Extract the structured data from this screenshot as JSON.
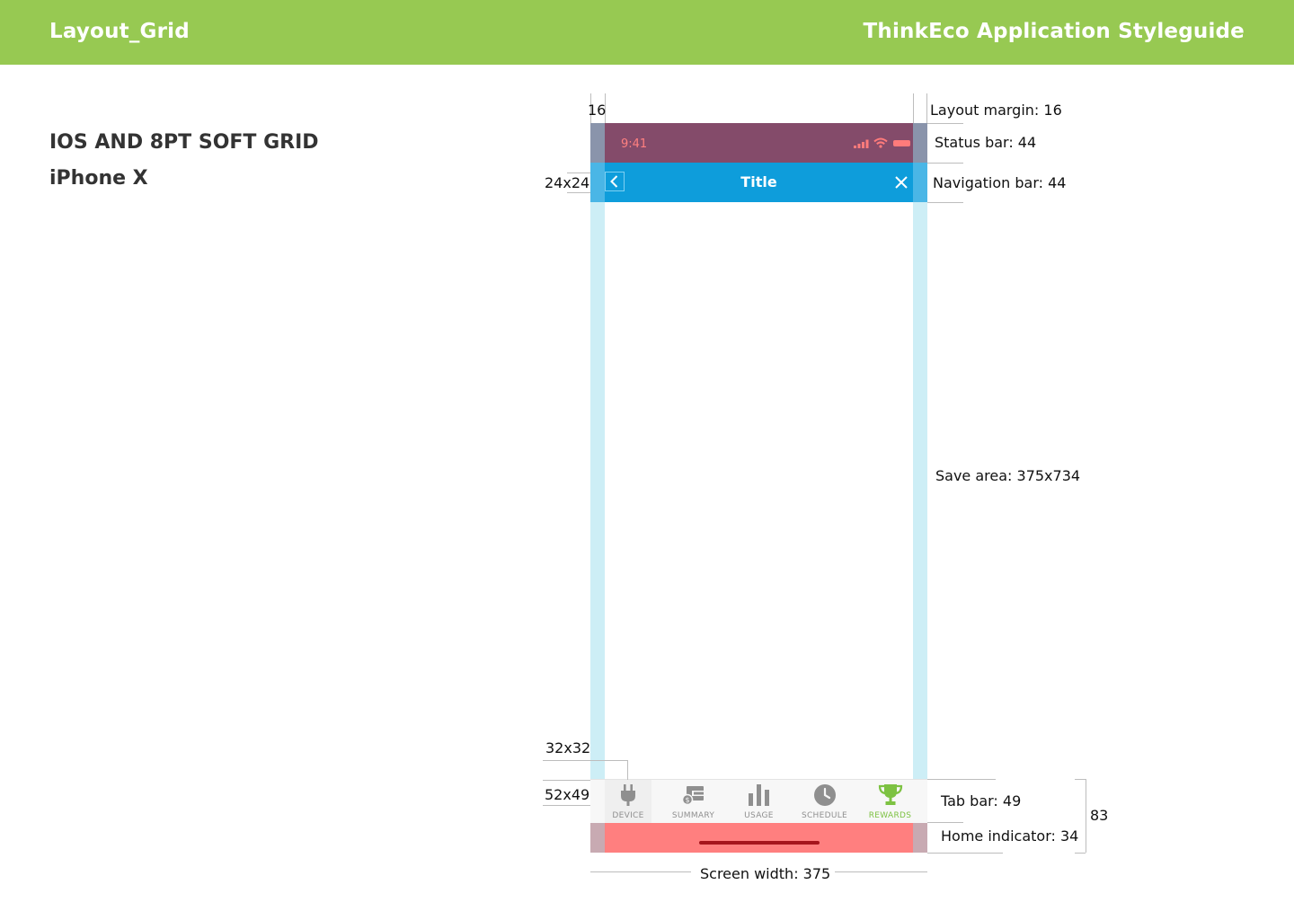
{
  "header": {
    "left_title": "Layout_Grid",
    "right_title": "ThinkEco Application Styleguide"
  },
  "heading": {
    "title": "IOS AND 8PT SOFT GRID",
    "device": "iPhone X"
  },
  "phone": {
    "status_bar": {
      "time": "9:41"
    },
    "nav_bar": {
      "title": "Title"
    },
    "tab_bar": {
      "tabs": [
        {
          "label": "DEVICE",
          "icon": "plug-icon",
          "active": false
        },
        {
          "label": "SUMMARY",
          "icon": "wallet-icon",
          "active": false
        },
        {
          "label": "USAGE",
          "icon": "bar-chart-icon",
          "active": false
        },
        {
          "label": "SCHEDULE",
          "icon": "clock-icon",
          "active": false
        },
        {
          "label": "REWARDS",
          "icon": "trophy-icon",
          "active": true
        }
      ]
    }
  },
  "annotations": {
    "margin_value": "16",
    "layout_margin": "Layout margin: 16",
    "status_bar": "Status bar: 44",
    "navigation_bar": "Navigation bar: 44",
    "icon_size": "24x24",
    "save_area": "Save area: 375x734",
    "tab_icon_size": "32x32",
    "tab_item_size": "52x49",
    "tab_bar": "Tab bar: 49",
    "bottom_total": "83",
    "home_indicator": "Home indicator: 34",
    "screen_width": "Screen width: 375"
  },
  "colors": {
    "header_green": "#97c952",
    "status_bar": "#844b6a",
    "nav_bar": "#0e9ddb",
    "margin_guide": "#cdeef6",
    "home_indicator_area": "#ff7f7f",
    "active_tab": "#7dc242",
    "inactive_tab": "#8f8f8f"
  }
}
